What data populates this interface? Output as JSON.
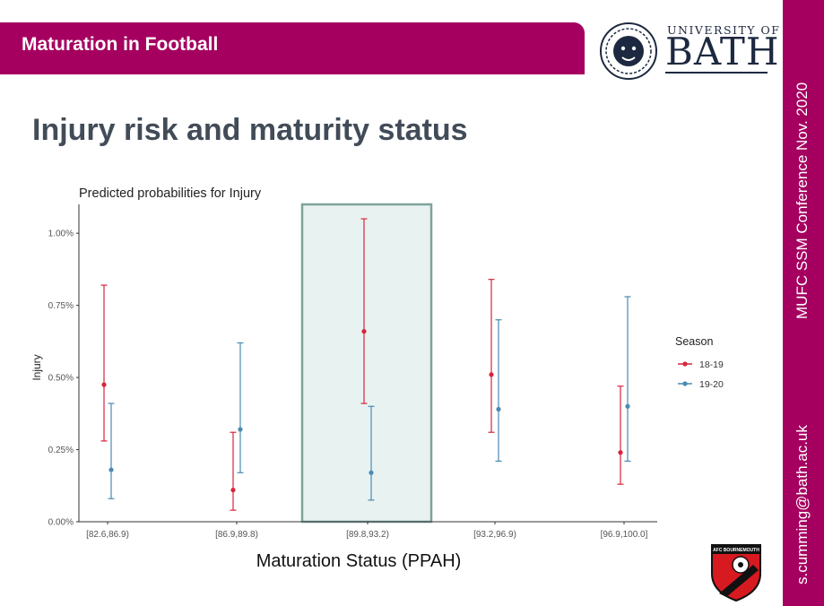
{
  "header": {
    "title": "Maturation in Football"
  },
  "logo": {
    "line1": "UNIVERSITY OF",
    "line2": "BATH"
  },
  "slide": {
    "title": "Injury risk and maturity status"
  },
  "sidebar": {
    "conference": "MUFC SSM Conference  Nov.  2020",
    "email": "s.cumming@bath.ac.uk"
  },
  "colors": {
    "brand": "#a5005f",
    "series_18_19": "#d7263d",
    "series_19_20": "#4a8ab3",
    "highlight_fill": "#e8f2f1",
    "highlight_stroke": "#7da39c"
  },
  "crest": {
    "text": "AFC BOURNEMOUTH",
    "icon": "football-crest-icon"
  },
  "chart_data": {
    "type": "scatter",
    "title": "Predicted probabilities for Injury",
    "xlabel": "Maturation Status (PPAH)",
    "ylabel": "Injury",
    "categories": [
      "[82.6,86.9)",
      "[86.9,89.8)",
      "[89.8,93.2)",
      "[93.2,96.9)",
      "[96.9,100.0]"
    ],
    "yticks": [
      "0.00%",
      "0.25%",
      "0.50%",
      "0.75%",
      "1.00%"
    ],
    "ylim": [
      0,
      1.1
    ],
    "highlight_category": "[89.8,93.2)",
    "legend_title": "Season",
    "legend_position": "right",
    "series": [
      {
        "name": "18-19",
        "values": [
          0.475,
          0.11,
          0.66,
          0.51,
          0.24
        ],
        "lower": [
          0.28,
          0.04,
          0.41,
          0.31,
          0.13
        ],
        "upper": [
          0.82,
          0.31,
          1.05,
          0.84,
          0.47
        ]
      },
      {
        "name": "19-20",
        "values": [
          0.18,
          0.32,
          0.17,
          0.39,
          0.4
        ],
        "lower": [
          0.08,
          0.17,
          0.075,
          0.21,
          0.21
        ],
        "upper": [
          0.41,
          0.62,
          0.4,
          0.7,
          0.78
        ]
      }
    ]
  }
}
